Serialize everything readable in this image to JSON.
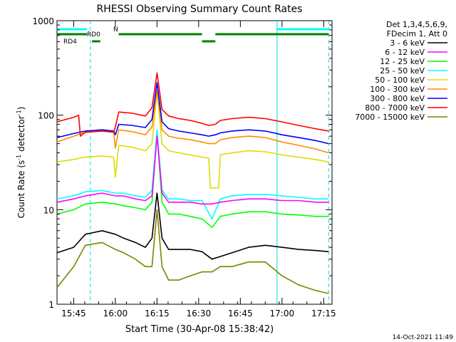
{
  "chart_data": {
    "type": "line",
    "title": "RHESSI Observing Summary Count Rates",
    "xlabel": "Start Time (30-Apr-08 15:38:42)",
    "ylabel": "Count Rate (s",
    "ylabel_sup": "-1",
    "ylabel_mid": " detector",
    "ylabel_end": ")",
    "yscale": "log",
    "ylim": [
      1,
      1000
    ],
    "yticks": [
      "1",
      "10",
      "100",
      "1000"
    ],
    "xlim_minutes": [
      15.65,
      17.3
    ],
    "xticks": [
      {
        "label": "15:45",
        "t": 15.75
      },
      {
        "label": "16:00",
        "t": 16.0
      },
      {
        "label": "16:15",
        "t": 16.25
      },
      {
        "label": "16:30",
        "t": 16.5
      },
      {
        "label": "16:45",
        "t": 16.75
      },
      {
        "label": "17:00",
        "t": 17.0
      },
      {
        "label": "17:15",
        "t": 17.25
      }
    ],
    "legend_header": [
      "Det 1,3,4,5,6,9,",
      "FDecim 1, Att 0"
    ],
    "legend_position": "top-right, outside plot",
    "footer_date": "14-Oct-2021 11:49",
    "flags": {
      "rd0_label": "RD0",
      "rd4_label": "RD4",
      "n_label": "N"
    },
    "vertical_lines": [
      {
        "t": 15.85,
        "style": "dashed"
      },
      {
        "t": 16.97,
        "style": "solid"
      },
      {
        "t": 17.28,
        "style": "dashed"
      }
    ],
    "series": [
      {
        "name": "3 - 6 keV",
        "color": "#000000",
        "points": [
          [
            15.65,
            3.5
          ],
          [
            15.75,
            4
          ],
          [
            15.82,
            5.5
          ],
          [
            15.92,
            6
          ],
          [
            16.0,
            5.5
          ],
          [
            16.05,
            5
          ],
          [
            16.12,
            4.5
          ],
          [
            16.18,
            4
          ],
          [
            16.22,
            5
          ],
          [
            16.25,
            15
          ],
          [
            16.28,
            5
          ],
          [
            16.32,
            3.8
          ],
          [
            16.38,
            3.8
          ],
          [
            16.45,
            3.8
          ],
          [
            16.52,
            3.6
          ],
          [
            16.58,
            3
          ],
          [
            16.63,
            3.2
          ],
          [
            16.7,
            3.5
          ],
          [
            16.8,
            4
          ],
          [
            16.9,
            4.2
          ],
          [
            17.0,
            4
          ],
          [
            17.1,
            3.8
          ],
          [
            17.2,
            3.7
          ],
          [
            17.28,
            3.6
          ]
        ]
      },
      {
        "name": "6 - 12 keV",
        "color": "#ff00ff",
        "points": [
          [
            15.65,
            12
          ],
          [
            15.75,
            13
          ],
          [
            15.82,
            14
          ],
          [
            15.92,
            15
          ],
          [
            16.0,
            14
          ],
          [
            16.05,
            14
          ],
          [
            16.12,
            13
          ],
          [
            16.18,
            12.5
          ],
          [
            16.22,
            14
          ],
          [
            16.25,
            60
          ],
          [
            16.28,
            15
          ],
          [
            16.32,
            12
          ],
          [
            16.38,
            12
          ],
          [
            16.45,
            12
          ],
          [
            16.52,
            11.5
          ],
          [
            16.58,
            11.5
          ],
          [
            16.63,
            12
          ],
          [
            16.7,
            12.5
          ],
          [
            16.8,
            13
          ],
          [
            16.9,
            13
          ],
          [
            17.0,
            12.5
          ],
          [
            17.1,
            12.5
          ],
          [
            17.2,
            12
          ],
          [
            17.28,
            12
          ]
        ]
      },
      {
        "name": "12 - 25 keV",
        "color": "#00ff00",
        "points": [
          [
            15.65,
            9
          ],
          [
            15.75,
            10
          ],
          [
            15.82,
            11.5
          ],
          [
            15.92,
            12
          ],
          [
            16.0,
            11.5
          ],
          [
            16.05,
            11
          ],
          [
            16.12,
            10.5
          ],
          [
            16.18,
            10
          ],
          [
            16.22,
            12
          ],
          [
            16.25,
            65
          ],
          [
            16.28,
            12
          ],
          [
            16.32,
            9
          ],
          [
            16.38,
            9
          ],
          [
            16.45,
            8.5
          ],
          [
            16.52,
            8
          ],
          [
            16.58,
            6.5
          ],
          [
            16.63,
            8.5
          ],
          [
            16.7,
            9
          ],
          [
            16.8,
            9.5
          ],
          [
            16.9,
            9.5
          ],
          [
            17.0,
            9
          ],
          [
            17.1,
            8.8
          ],
          [
            17.2,
            8.5
          ],
          [
            17.28,
            8.5
          ]
        ]
      },
      {
        "name": "25 - 50 keV",
        "color": "#00ffff",
        "points": [
          [
            15.65,
            13
          ],
          [
            15.75,
            14
          ],
          [
            15.82,
            15.5
          ],
          [
            15.92,
            16
          ],
          [
            16.0,
            15
          ],
          [
            16.05,
            15
          ],
          [
            16.12,
            14
          ],
          [
            16.18,
            13.5
          ],
          [
            16.22,
            16
          ],
          [
            16.25,
            70
          ],
          [
            16.28,
            16
          ],
          [
            16.32,
            13
          ],
          [
            16.38,
            13
          ],
          [
            16.45,
            12.5
          ],
          [
            16.52,
            12.5
          ],
          [
            16.58,
            8
          ],
          [
            16.63,
            13
          ],
          [
            16.7,
            14
          ],
          [
            16.8,
            14.5
          ],
          [
            16.9,
            14.5
          ],
          [
            17.0,
            14
          ],
          [
            17.1,
            13.5
          ],
          [
            17.2,
            13
          ],
          [
            17.28,
            13
          ]
        ]
      },
      {
        "name": "50 - 100 keV",
        "color": "#dddd00",
        "points": [
          [
            15.65,
            32
          ],
          [
            15.75,
            34
          ],
          [
            15.82,
            36
          ],
          [
            15.92,
            37
          ],
          [
            15.99,
            36
          ],
          [
            16.0,
            22
          ],
          [
            16.02,
            48
          ],
          [
            16.1,
            46
          ],
          [
            16.18,
            42
          ],
          [
            16.22,
            50
          ],
          [
            16.25,
            180
          ],
          [
            16.28,
            50
          ],
          [
            16.32,
            42
          ],
          [
            16.38,
            40
          ],
          [
            16.45,
            38
          ],
          [
            16.52,
            36
          ],
          [
            16.56,
            35
          ],
          [
            16.57,
            17
          ],
          [
            16.62,
            17
          ],
          [
            16.63,
            38
          ],
          [
            16.7,
            40
          ],
          [
            16.8,
            42
          ],
          [
            16.9,
            41
          ],
          [
            17.0,
            38
          ],
          [
            17.1,
            36
          ],
          [
            17.2,
            34
          ],
          [
            17.28,
            32
          ]
        ]
      },
      {
        "name": "100 - 300 keV",
        "color": "#ff8c00",
        "points": [
          [
            15.65,
            52
          ],
          [
            15.75,
            60
          ],
          [
            15.82,
            66
          ],
          [
            15.92,
            68
          ],
          [
            15.99,
            66
          ],
          [
            16.0,
            45
          ],
          [
            16.02,
            70
          ],
          [
            16.1,
            67
          ],
          [
            16.18,
            62
          ],
          [
            16.22,
            75
          ],
          [
            16.25,
            180
          ],
          [
            16.28,
            70
          ],
          [
            16.32,
            60
          ],
          [
            16.38,
            57
          ],
          [
            16.45,
            55
          ],
          [
            16.52,
            52
          ],
          [
            16.56,
            50
          ],
          [
            16.6,
            50
          ],
          [
            16.63,
            55
          ],
          [
            16.7,
            58
          ],
          [
            16.8,
            60
          ],
          [
            16.9,
            58
          ],
          [
            17.0,
            52
          ],
          [
            17.1,
            48
          ],
          [
            17.2,
            44
          ],
          [
            17.28,
            40
          ]
        ]
      },
      {
        "name": "300 - 800 keV",
        "color": "#0000ff",
        "points": [
          [
            15.65,
            58
          ],
          [
            15.75,
            64
          ],
          [
            15.82,
            68
          ],
          [
            15.92,
            70
          ],
          [
            15.99,
            68
          ],
          [
            16.0,
            62
          ],
          [
            16.02,
            80
          ],
          [
            16.1,
            78
          ],
          [
            16.18,
            74
          ],
          [
            16.22,
            90
          ],
          [
            16.25,
            220
          ],
          [
            16.28,
            85
          ],
          [
            16.32,
            72
          ],
          [
            16.38,
            68
          ],
          [
            16.45,
            65
          ],
          [
            16.52,
            62
          ],
          [
            16.56,
            60
          ],
          [
            16.6,
            62
          ],
          [
            16.63,
            65
          ],
          [
            16.7,
            68
          ],
          [
            16.8,
            70
          ],
          [
            16.9,
            68
          ],
          [
            17.0,
            62
          ],
          [
            17.1,
            58
          ],
          [
            17.2,
            54
          ],
          [
            17.28,
            50
          ]
        ]
      },
      {
        "name": "800 - 7000 keV",
        "color": "#ff0000",
        "points": [
          [
            15.65,
            85
          ],
          [
            15.75,
            95
          ],
          [
            15.78,
            100
          ],
          [
            15.79,
            60
          ],
          [
            15.82,
            66
          ],
          [
            15.92,
            68
          ],
          [
            15.99,
            66
          ],
          [
            16.0,
            75
          ],
          [
            16.02,
            108
          ],
          [
            16.1,
            105
          ],
          [
            16.18,
            98
          ],
          [
            16.22,
            120
          ],
          [
            16.25,
            280
          ],
          [
            16.28,
            115
          ],
          [
            16.32,
            98
          ],
          [
            16.38,
            92
          ],
          [
            16.45,
            88
          ],
          [
            16.52,
            82
          ],
          [
            16.56,
            78
          ],
          [
            16.6,
            80
          ],
          [
            16.63,
            88
          ],
          [
            16.7,
            92
          ],
          [
            16.8,
            95
          ],
          [
            16.9,
            92
          ],
          [
            17.0,
            85
          ],
          [
            17.1,
            78
          ],
          [
            17.2,
            72
          ],
          [
            17.28,
            68
          ]
        ]
      },
      {
        "name": "7000 - 15000 keV",
        "color": "#808000",
        "points": [
          [
            15.65,
            1.5
          ],
          [
            15.75,
            2.5
          ],
          [
            15.82,
            4.2
          ],
          [
            15.92,
            4.5
          ],
          [
            16.0,
            3.8
          ],
          [
            16.05,
            3.5
          ],
          [
            16.12,
            3
          ],
          [
            16.18,
            2.5
          ],
          [
            16.22,
            2.5
          ],
          [
            16.25,
            10
          ],
          [
            16.28,
            2.5
          ],
          [
            16.32,
            1.8
          ],
          [
            16.38,
            1.8
          ],
          [
            16.45,
            2
          ],
          [
            16.52,
            2.2
          ],
          [
            16.58,
            2.2
          ],
          [
            16.63,
            2.5
          ],
          [
            16.7,
            2.5
          ],
          [
            16.8,
            2.8
          ],
          [
            16.9,
            2.8
          ],
          [
            17.0,
            2
          ],
          [
            17.1,
            1.6
          ],
          [
            17.2,
            1.4
          ],
          [
            17.28,
            1.3
          ]
        ]
      }
    ]
  }
}
